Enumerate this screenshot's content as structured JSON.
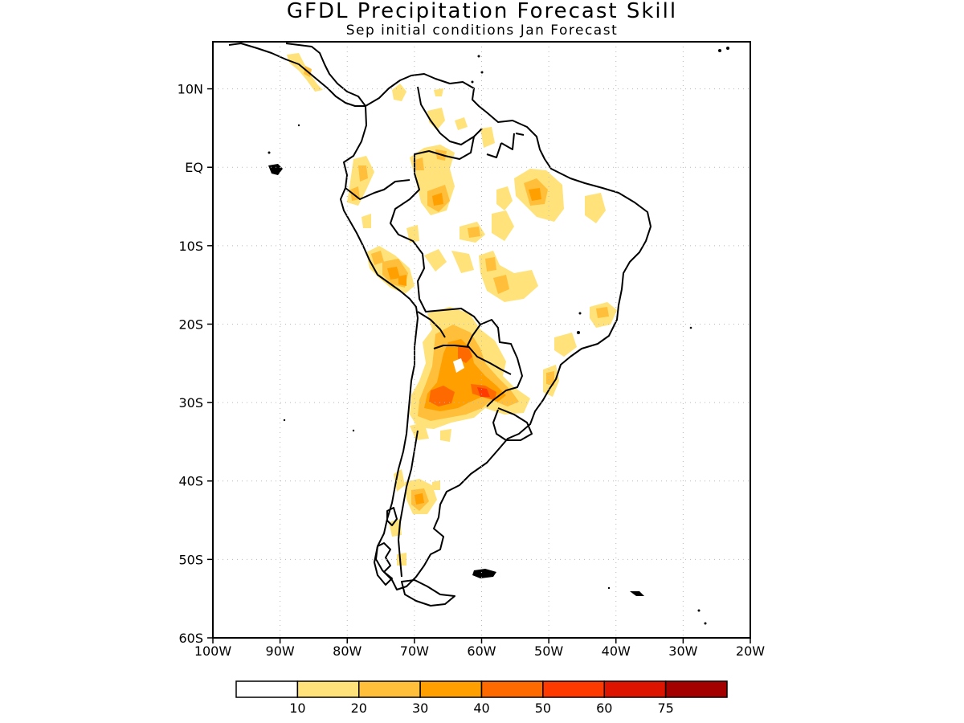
{
  "title": "GFDL Precipitation Forecast Skill",
  "subtitle": "Sep initial conditions  Jan Forecast",
  "map": {
    "region": "South America",
    "lon_range": [
      -100,
      -20
    ],
    "lat_range": [
      -60,
      16
    ],
    "grid": true,
    "lat_ticks": [
      "10N",
      "EQ",
      "10S",
      "20S",
      "30S",
      "40S",
      "50S",
      "60S"
    ],
    "lon_ticks": [
      "100W",
      "90W",
      "80W",
      "70W",
      "60W",
      "50W",
      "40W",
      "30W",
      "20W"
    ]
  },
  "colorbar": {
    "colors": [
      "#ffffff",
      "#ffe27a",
      "#ffbf3a",
      "#ff9f00",
      "#ff6a00",
      "#ff3a00",
      "#dd1500",
      "#a50000"
    ],
    "labels": [
      "10",
      "20",
      "30",
      "40",
      "50",
      "60",
      "75"
    ]
  }
}
